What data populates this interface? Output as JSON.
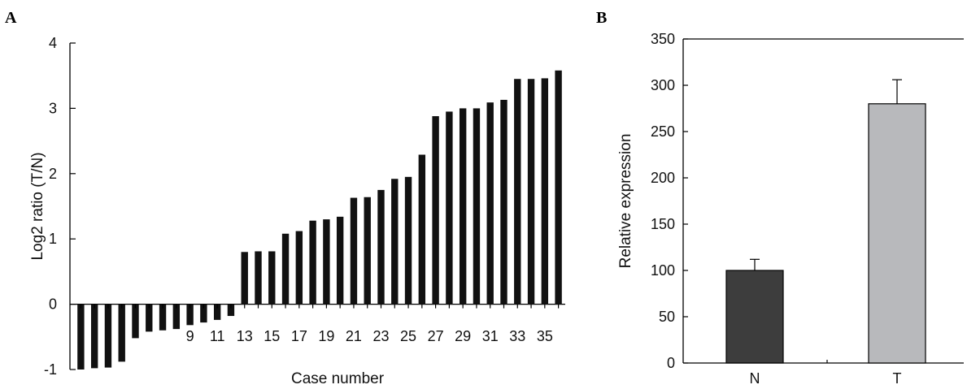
{
  "panels": {
    "a_label": "A",
    "b_label": "B"
  },
  "chart_data": [
    {
      "type": "bar",
      "panel": "A",
      "title": "",
      "xlabel": "Case number",
      "ylabel": "Log2 ratio (T/N)",
      "ylim": [
        -1,
        4
      ],
      "yticks": [
        -1,
        0,
        1,
        2,
        3,
        4
      ],
      "grid": false,
      "bar_color": "#111111",
      "x_tick_labels": [
        "9",
        "11",
        "13",
        "15",
        "17",
        "19",
        "21",
        "23",
        "25",
        "27",
        "29",
        "31",
        "33",
        "35"
      ],
      "categories": [
        "1",
        "2",
        "3",
        "4",
        "5",
        "6",
        "7",
        "8",
        "9",
        "10",
        "11",
        "12",
        "13",
        "14",
        "15",
        "16",
        "17",
        "18",
        "19",
        "20",
        "21",
        "22",
        "23",
        "24",
        "25",
        "26",
        "27",
        "28",
        "29",
        "30",
        "31",
        "32",
        "33",
        "34",
        "35",
        "36"
      ],
      "values": [
        -1.0,
        -0.98,
        -0.97,
        -0.88,
        -0.52,
        -0.42,
        -0.4,
        -0.38,
        -0.32,
        -0.28,
        -0.24,
        -0.18,
        0.8,
        0.81,
        0.81,
        1.08,
        1.12,
        1.28,
        1.3,
        1.34,
        1.63,
        1.64,
        1.75,
        1.92,
        1.95,
        2.29,
        2.88,
        2.95,
        3.0,
        3.0,
        3.09,
        3.13,
        3.45,
        3.45,
        3.46,
        3.58
      ]
    },
    {
      "type": "bar",
      "panel": "B",
      "title": "",
      "xlabel": "",
      "ylabel": "Relative expression",
      "ylim": [
        0,
        350
      ],
      "yticks": [
        0,
        50,
        100,
        150,
        200,
        250,
        300,
        350
      ],
      "grid": false,
      "categories": [
        "N",
        "T"
      ],
      "values": [
        100,
        280
      ],
      "errors": [
        12,
        26
      ],
      "colors": [
        "#3d3d3d",
        "#b8b9bc"
      ]
    }
  ]
}
